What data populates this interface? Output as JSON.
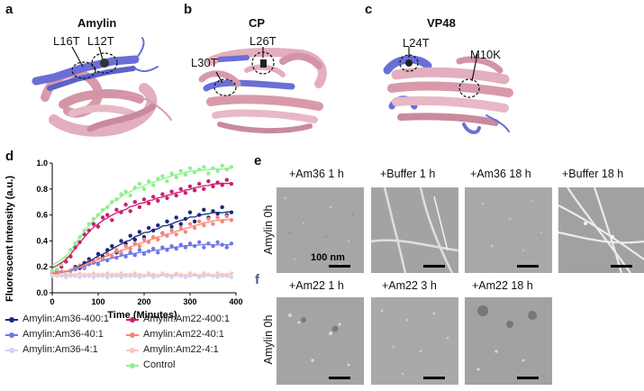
{
  "panels": {
    "a": {
      "letter": "a",
      "title": "Amylin",
      "mutations": [
        "L16T",
        "L12T"
      ]
    },
    "b": {
      "letter": "b",
      "title": "CP",
      "mutations": [
        "L30T",
        "L26T"
      ]
    },
    "c": {
      "letter": "c",
      "title": "VP48",
      "mutations": [
        "L24T",
        "M10K"
      ]
    },
    "d": {
      "letter": "d"
    },
    "e": {
      "letter": "e",
      "row_label": "Amylin 0h",
      "conditions": [
        "+Am36 1 h",
        "+Buffer 1 h",
        "+Am36 18 h",
        "+Buffer 18 h"
      ],
      "scale_label": "100 nm"
    },
    "f": {
      "letter": "f",
      "row_label": "Amylin 0h",
      "conditions": [
        "+Am22 1 h",
        "+Am22 3 h",
        "+Am22 18 h"
      ]
    }
  },
  "colors": {
    "protein_helix": "#e3aebd",
    "protein_dark": "#b77c8f",
    "binding_region": "#6a6fd6",
    "s_am36_400": "#1b2a7a",
    "s_am36_40": "#6f78e8",
    "s_am36_4": "#cfd3f5",
    "s_am22_400": "#cc1f6e",
    "s_am22_40": "#f4867a",
    "s_am22_4": "#f8c7c2",
    "s_control": "#8ff08d"
  },
  "chart_data": {
    "type": "scatter",
    "xlabel": "Time (Minutes)",
    "ylabel": "Fluorescent Intensity (a.u.)",
    "xlim": [
      0,
      400
    ],
    "ylim": [
      0.0,
      1.0
    ],
    "xticks": [
      "0",
      "100",
      "200",
      "300",
      "400"
    ],
    "yticks": [
      "0.0",
      "0.2",
      "0.4",
      "0.6",
      "0.8",
      "1.0"
    ],
    "grid": false,
    "legend_position": "below",
    "x": [
      0,
      10,
      20,
      30,
      40,
      50,
      60,
      70,
      80,
      90,
      100,
      110,
      120,
      130,
      140,
      150,
      160,
      170,
      180,
      190,
      200,
      210,
      220,
      230,
      240,
      250,
      260,
      270,
      280,
      290,
      300,
      310,
      320,
      330,
      340,
      350,
      360,
      370,
      380,
      390
    ],
    "series": [
      {
        "name": "Amylin:Am36-400:1",
        "color_key": "s_am36_400",
        "values": [
          0.15,
          0.15,
          0.16,
          0.14,
          0.17,
          0.2,
          0.19,
          0.23,
          0.26,
          0.24,
          0.3,
          0.28,
          0.33,
          0.36,
          0.31,
          0.4,
          0.38,
          0.44,
          0.41,
          0.47,
          0.43,
          0.5,
          0.48,
          0.52,
          0.46,
          0.55,
          0.51,
          0.58,
          0.53,
          0.57,
          0.62,
          0.55,
          0.6,
          0.64,
          0.58,
          0.63,
          0.61,
          0.66,
          0.6,
          0.62
        ]
      },
      {
        "name": "Amylin:Am36-40:1",
        "color_key": "s_am36_40",
        "values": [
          0.15,
          0.14,
          0.16,
          0.15,
          0.17,
          0.18,
          0.2,
          0.19,
          0.22,
          0.24,
          0.22,
          0.26,
          0.25,
          0.28,
          0.27,
          0.3,
          0.28,
          0.31,
          0.29,
          0.33,
          0.3,
          0.32,
          0.34,
          0.31,
          0.35,
          0.33,
          0.36,
          0.34,
          0.37,
          0.35,
          0.38,
          0.36,
          0.39,
          0.35,
          0.38,
          0.36,
          0.39,
          0.37,
          0.35,
          0.38
        ]
      },
      {
        "name": "Amylin:Am36-4:1",
        "color_key": "s_am36_4",
        "values": [
          0.13,
          0.14,
          0.13,
          0.12,
          0.14,
          0.13,
          0.12,
          0.14,
          0.13,
          0.12,
          0.13,
          0.14,
          0.12,
          0.13,
          0.14,
          0.12,
          0.13,
          0.14,
          0.13,
          0.12,
          0.13,
          0.14,
          0.12,
          0.13,
          0.14,
          0.13,
          0.12,
          0.14,
          0.13,
          0.12,
          0.13,
          0.14,
          0.12,
          0.13,
          0.14,
          0.13,
          0.12,
          0.13,
          0.14,
          0.12
        ]
      },
      {
        "name": "Amylin:Am22-400:1",
        "color_key": "s_am22_400",
        "values": [
          0.16,
          0.17,
          0.2,
          0.24,
          0.28,
          0.35,
          0.39,
          0.45,
          0.48,
          0.53,
          0.51,
          0.58,
          0.6,
          0.56,
          0.64,
          0.62,
          0.68,
          0.63,
          0.7,
          0.66,
          0.72,
          0.69,
          0.74,
          0.71,
          0.76,
          0.73,
          0.78,
          0.75,
          0.8,
          0.77,
          0.82,
          0.79,
          0.84,
          0.8,
          0.86,
          0.82,
          0.85,
          0.83,
          0.87,
          0.84
        ]
      },
      {
        "name": "Amylin:Am22-40:1",
        "color_key": "s_am22_40",
        "values": [
          0.15,
          0.15,
          0.16,
          0.15,
          0.17,
          0.19,
          0.21,
          0.2,
          0.24,
          0.23,
          0.27,
          0.26,
          0.3,
          0.28,
          0.33,
          0.31,
          0.36,
          0.34,
          0.38,
          0.36,
          0.41,
          0.39,
          0.43,
          0.41,
          0.46,
          0.44,
          0.48,
          0.45,
          0.5,
          0.47,
          0.53,
          0.5,
          0.55,
          0.52,
          0.57,
          0.53,
          0.58,
          0.55,
          0.59,
          0.56
        ]
      },
      {
        "name": "Amylin:Am22-4:1",
        "color_key": "s_am22_4",
        "values": [
          0.14,
          0.13,
          0.14,
          0.15,
          0.13,
          0.14,
          0.15,
          0.13,
          0.14,
          0.15,
          0.14,
          0.13,
          0.15,
          0.14,
          0.13,
          0.15,
          0.14,
          0.13,
          0.15,
          0.14,
          0.13,
          0.15,
          0.14,
          0.13,
          0.15,
          0.14,
          0.13,
          0.15,
          0.14,
          0.13,
          0.15,
          0.14,
          0.13,
          0.15,
          0.14,
          0.13,
          0.15,
          0.14,
          0.13,
          0.15
        ]
      },
      {
        "name": "Control",
        "color_key": "s_control",
        "values": [
          0.17,
          0.18,
          0.22,
          0.27,
          0.33,
          0.38,
          0.43,
          0.48,
          0.53,
          0.57,
          0.6,
          0.64,
          0.66,
          0.7,
          0.72,
          0.76,
          0.78,
          0.75,
          0.81,
          0.84,
          0.8,
          0.86,
          0.83,
          0.88,
          0.9,
          0.86,
          0.92,
          0.89,
          0.94,
          0.91,
          0.96,
          0.93,
          0.95,
          0.97,
          0.92,
          0.96,
          0.94,
          0.98,
          0.95,
          0.97
        ]
      }
    ]
  }
}
